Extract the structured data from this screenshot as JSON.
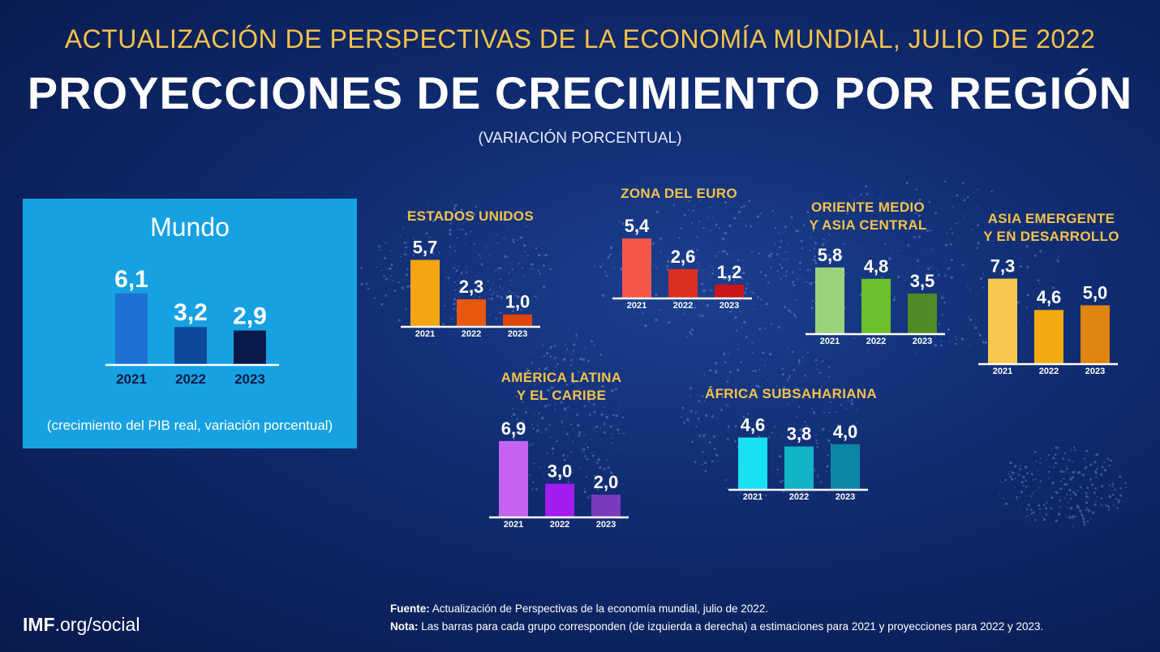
{
  "header": {
    "supertitle": "ACTUALIZACIÓN DE PERSPECTIVAS DE LA ECONOMÍA MUNDIAL, JULIO DE 2022",
    "title": "PROYECCIONES DE CRECIMIENTO POR REGIÓN",
    "subtitle": "(VARIACIÓN PORCENTUAL)"
  },
  "world_panel": {
    "title": "Mundo",
    "note": "(crecimiento del PIB real, variación porcentual)"
  },
  "footer": {
    "logo_bold": "IMF",
    "logo_rest": ".org/social",
    "source_label": "Fuente:",
    "source_text": " Actualización de Perspectivas de la economía mundial, julio de 2022.",
    "note_label": "Nota:",
    "note_text": " Las barras para cada grupo corresponden (de izquierda a derecha) a estimaciones para 2021 y proyecciones para 2022 y 2023."
  },
  "colors": {
    "background": "#0f2a6e",
    "title_gold": "#f4c24a",
    "world_panel": "#16a2e2"
  },
  "chart_data": [
    {
      "id": "world",
      "type": "bar",
      "title": "Mundo",
      "categories": [
        "2021",
        "2022",
        "2023"
      ],
      "values": [
        6.1,
        3.2,
        2.9
      ],
      "labels": [
        "6,1",
        "3,2",
        "2,9"
      ],
      "colors": [
        "#1f6fd3",
        "#0d4a99",
        "#071a4a"
      ]
    },
    {
      "id": "us",
      "type": "bar",
      "title": "ESTADOS UNIDOS",
      "categories": [
        "2021",
        "2022",
        "2023"
      ],
      "values": [
        5.7,
        2.3,
        1.0
      ],
      "labels": [
        "5,7",
        "2,3",
        "1,0"
      ],
      "colors": [
        "#f3a512",
        "#e8580c",
        "#e0430c"
      ]
    },
    {
      "id": "euro",
      "type": "bar",
      "title": "ZONA DEL EURO",
      "categories": [
        "2021",
        "2022",
        "2023"
      ],
      "values": [
        5.4,
        2.6,
        1.2
      ],
      "labels": [
        "5,4",
        "2,6",
        "1,2"
      ],
      "colors": [
        "#f4564a",
        "#dc2f22",
        "#c9161a"
      ]
    },
    {
      "id": "mecа",
      "type": "bar",
      "title": "ORIENTE MEDIO\nY ASIA CENTRAL",
      "categories": [
        "2021",
        "2022",
        "2023"
      ],
      "values": [
        5.8,
        4.8,
        3.5
      ],
      "labels": [
        "5,8",
        "4,8",
        "3,5"
      ],
      "colors": [
        "#9bd37d",
        "#6cbf2a",
        "#4f8a24"
      ]
    },
    {
      "id": "asia",
      "type": "bar",
      "title": "ASIA EMERGENTE\nY EN DESARROLLO",
      "categories": [
        "2021",
        "2022",
        "2023"
      ],
      "values": [
        7.3,
        4.6,
        5.0
      ],
      "labels": [
        "7,3",
        "4,6",
        "5,0"
      ],
      "colors": [
        "#f7c84f",
        "#f2aa0e",
        "#e0850d"
      ]
    },
    {
      "id": "latam",
      "type": "bar",
      "title": "AMÉRICA LATINA\nY EL CARIBE",
      "categories": [
        "2021",
        "2022",
        "2023"
      ],
      "values": [
        6.9,
        3.0,
        2.0
      ],
      "labels": [
        "6,9",
        "3,0",
        "2,0"
      ],
      "colors": [
        "#c562f2",
        "#a21cf0",
        "#7a3ac0"
      ]
    },
    {
      "id": "ssa",
      "type": "bar",
      "title": "ÁFRICA SUBSAHARIANA",
      "categories": [
        "2021",
        "2022",
        "2023"
      ],
      "values": [
        4.6,
        3.8,
        4.0
      ],
      "labels": [
        "4,6",
        "3,8",
        "4,0"
      ],
      "colors": [
        "#19e0f0",
        "#11b3c6",
        "#0e86a6"
      ]
    }
  ]
}
